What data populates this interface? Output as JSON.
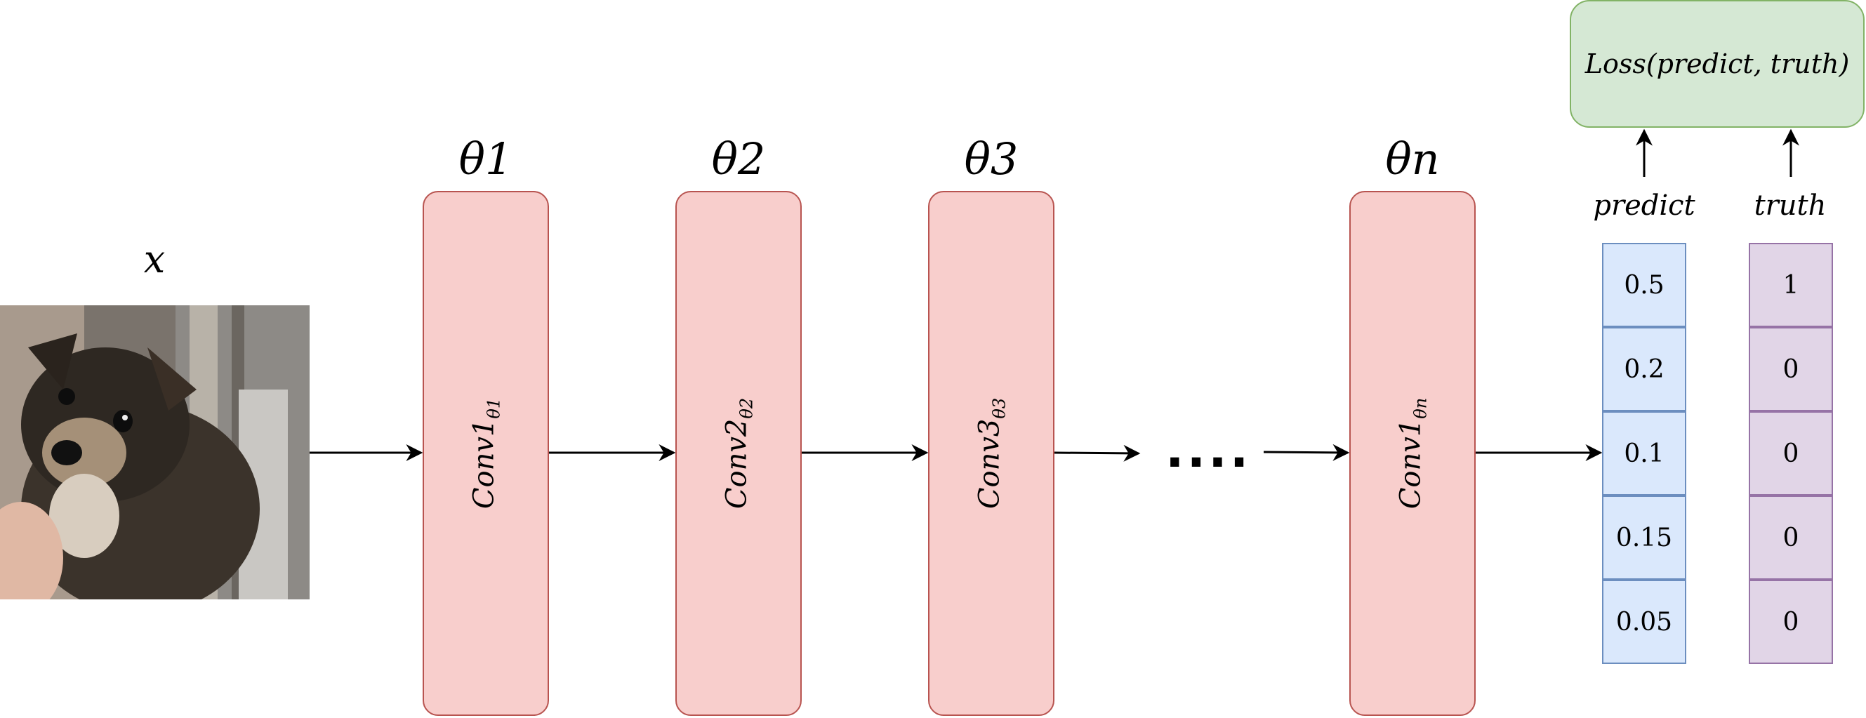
{
  "input": {
    "label": "x",
    "image_alt": "puppy photo"
  },
  "layers": [
    {
      "theta": "θ1",
      "name": "Conv1",
      "sub": "θ1"
    },
    {
      "theta": "θ2",
      "name": "Conv2",
      "sub": "θ2"
    },
    {
      "theta": "θ3",
      "name": "Conv3",
      "sub": "θ3"
    },
    {
      "theta": "θn",
      "name": "Conv1",
      "sub": "θn"
    }
  ],
  "ellipsis": "....",
  "predict": {
    "label": "predict",
    "values": [
      "0.5",
      "0.2",
      "0.1",
      "0.15",
      "0.05"
    ]
  },
  "truth": {
    "label": "truth",
    "values": [
      "1",
      "0",
      "0",
      "0",
      "0"
    ]
  },
  "loss": {
    "text": "Loss(predict, truth)"
  },
  "colors": {
    "layer_fill": "#f8cecc",
    "layer_stroke": "#b85450",
    "predict_fill": "#dae8fc",
    "predict_stroke": "#6c8ebf",
    "truth_fill": "#e1d5e7",
    "truth_stroke": "#9673a6",
    "loss_fill": "#d5e8d4",
    "loss_stroke": "#82b366"
  }
}
